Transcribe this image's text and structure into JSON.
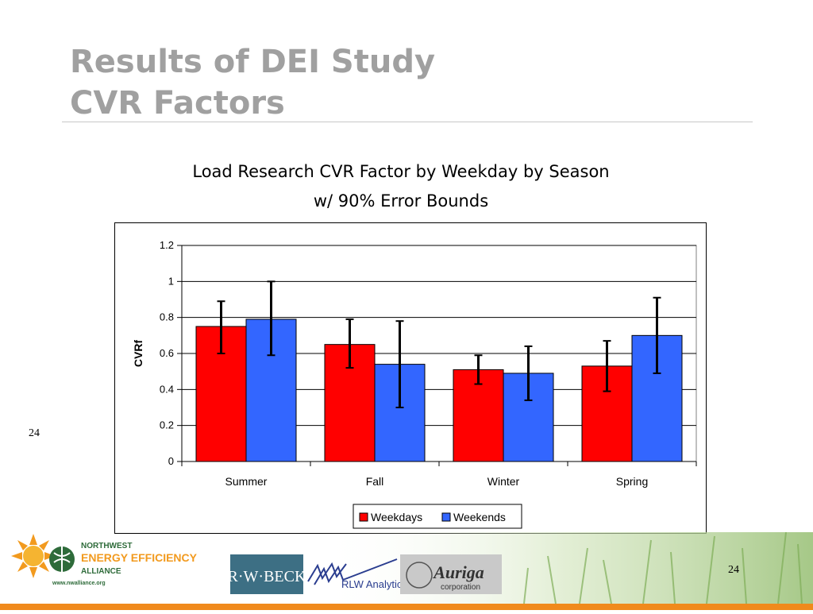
{
  "slide": {
    "title_line1": "Results of DEI Study",
    "title_line2": "CVR Factors",
    "slide_number_left": "24",
    "slide_number_right": "24"
  },
  "colors": {
    "title": "#a0a0a0",
    "weekdays": "#ff0000",
    "weekends": "#3366ff",
    "footer_bar": "#f08a1c"
  },
  "footer": {
    "neea_line1": "NORTHWEST",
    "neea_line2": "ENERGY EFFICIENCY",
    "neea_line3": "ALLIANCE",
    "neea_url": "www.nwalliance.org",
    "rwbeck": "R·W·BECK",
    "rlw": "RLW Analytics",
    "auriga": "Auriga",
    "auriga_sub": "corporation"
  },
  "chart_data": {
    "type": "bar",
    "title": "Load Research CVR Factor by Weekday by Season",
    "subtitle": "w/ 90% Error Bounds",
    "xlabel": "",
    "ylabel": "CVRf",
    "categories": [
      "Summer",
      "Fall",
      "Winter",
      "Spring"
    ],
    "ylim": [
      0,
      1.2
    ],
    "yticks": [
      "0",
      "0.2",
      "0.4",
      "0.6",
      "0.8",
      "1",
      "1.2"
    ],
    "grid": true,
    "legend_position": "bottom",
    "series": [
      {
        "name": "Weekdays",
        "values": [
          0.75,
          0.65,
          0.51,
          0.53
        ],
        "error_low": [
          0.6,
          0.52,
          0.43,
          0.39
        ],
        "error_high": [
          0.89,
          0.79,
          0.59,
          0.67
        ]
      },
      {
        "name": "Weekends",
        "values": [
          0.79,
          0.54,
          0.49,
          0.7
        ],
        "error_low": [
          0.59,
          0.3,
          0.34,
          0.49
        ],
        "error_high": [
          1.0,
          0.78,
          0.64,
          0.91
        ]
      }
    ]
  }
}
